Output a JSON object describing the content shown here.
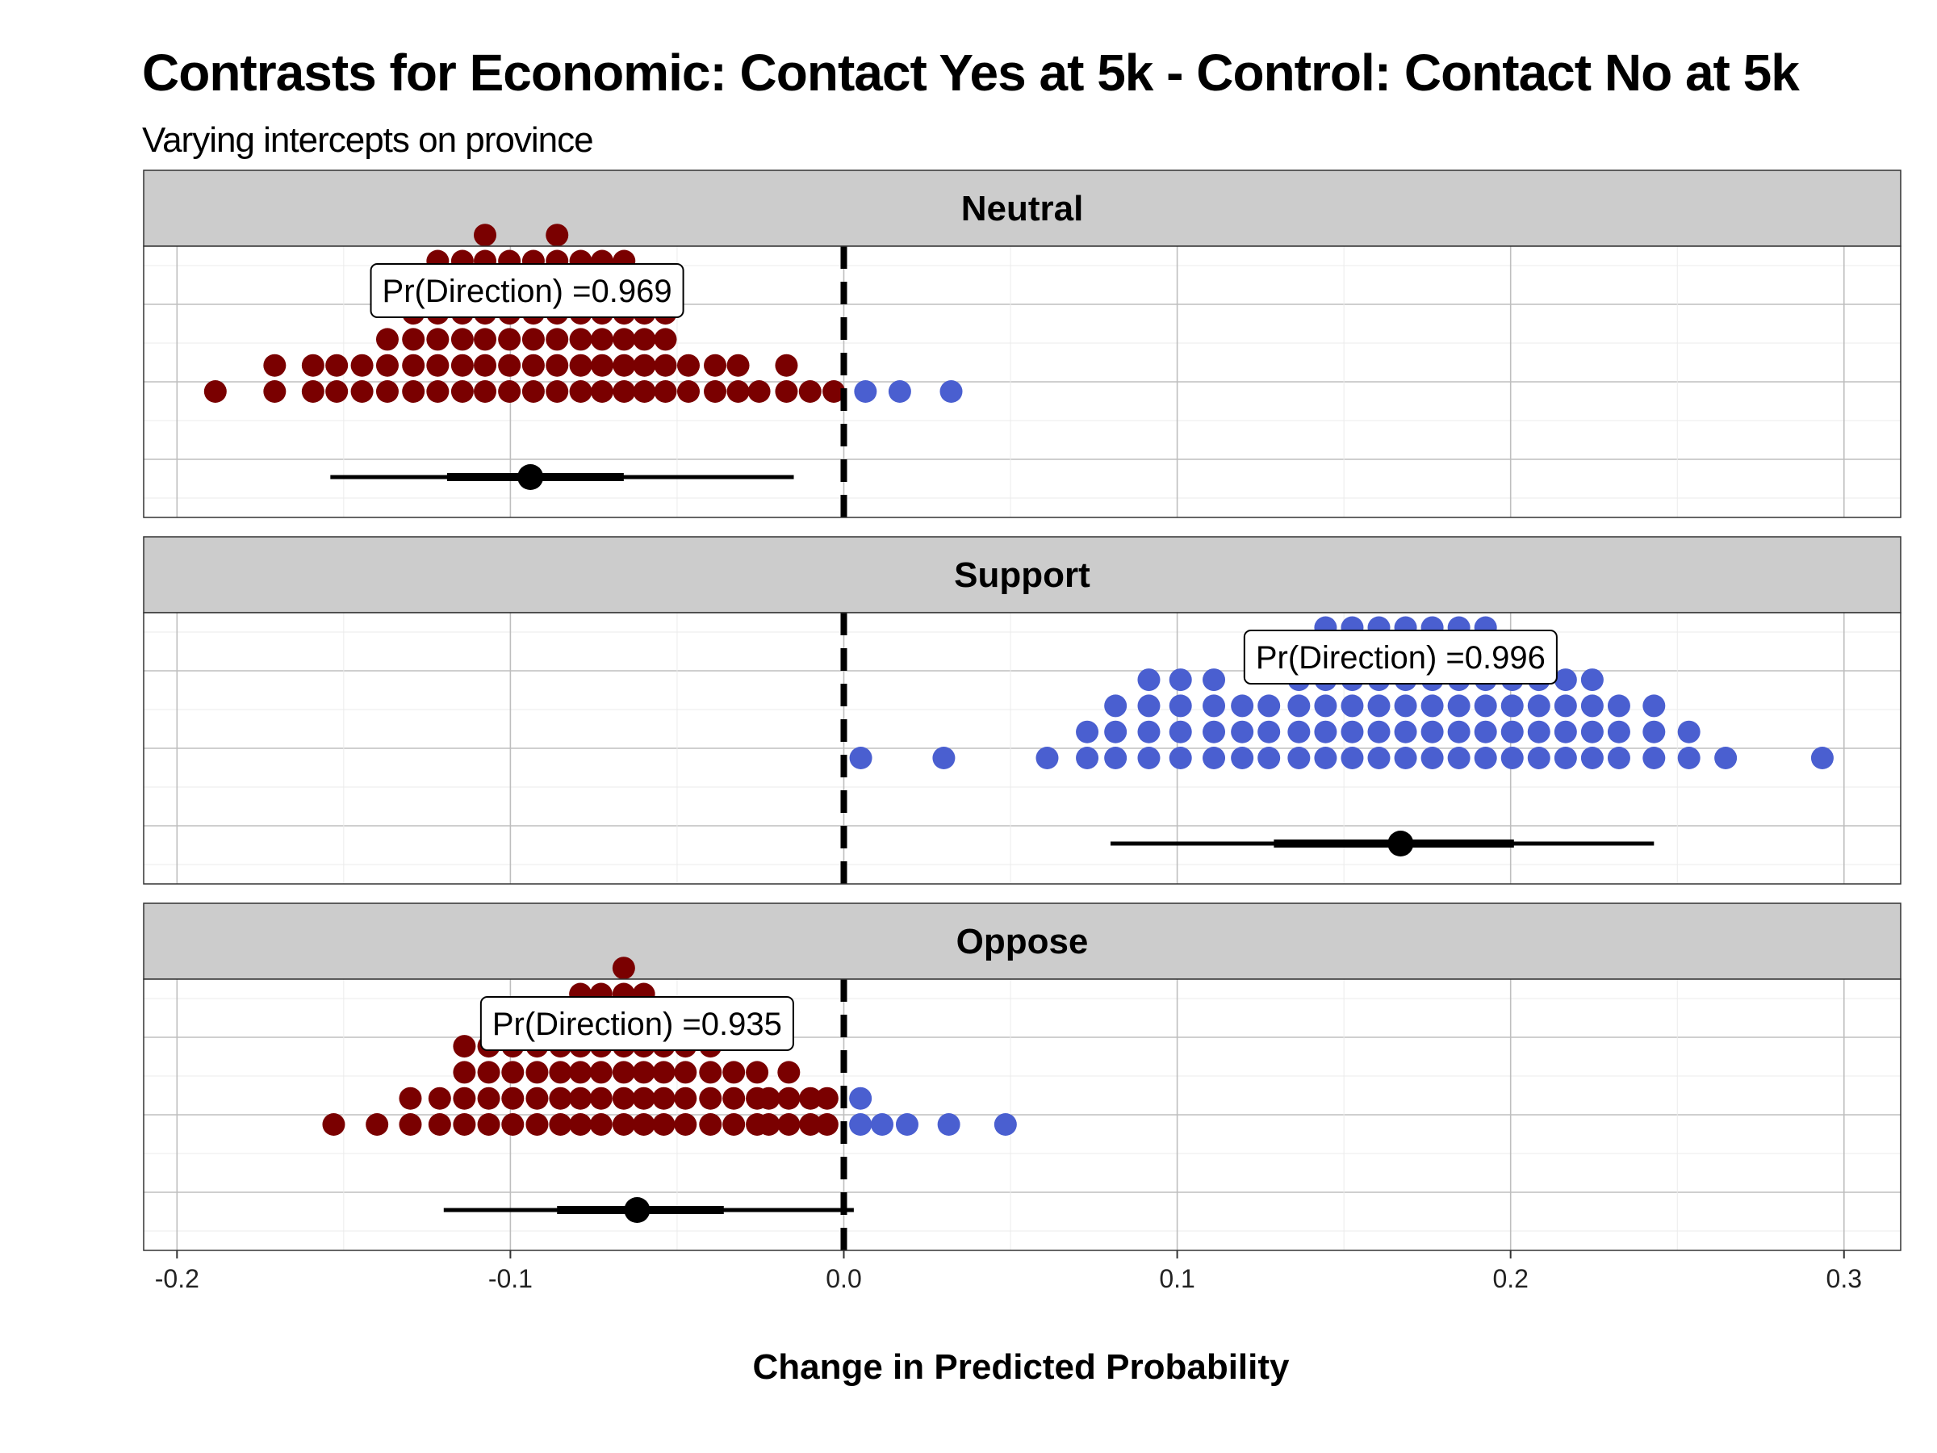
{
  "chart_data": {
    "type": "scatter",
    "subtype": "faceted quantile dotplot",
    "title": "Contrasts for Economic: Contact Yes at 5k - Control: Contact No at 5k",
    "subtitle": "Varying intercepts on province",
    "xlabel": "Change in Predicted Probability",
    "ylabel": "",
    "xlim": [
      -0.21,
      0.317
    ],
    "x_ticks": [
      "-0.2",
      "-0.1",
      "0.0",
      "0.1",
      "0.2",
      "0.3"
    ],
    "x_tick_values": [
      -0.2,
      -0.1,
      0.0,
      0.1,
      0.2,
      0.3
    ],
    "reference_line": {
      "x": 0,
      "style": "dashed",
      "color": "#000000"
    },
    "grid": true,
    "legend": "none",
    "colors": {
      "negative": "#7a0000",
      "positive": "#4a5fd0",
      "interval": "#000000",
      "strip": "#cccccc",
      "grid": "#bebebe"
    },
    "facets": [
      {
        "label": "Neutral",
        "annotation": "Pr(Direction) =0.969",
        "annotation_x": -0.095,
        "point_estimate": -0.094,
        "interval_inner": [
          -0.119,
          -0.066
        ],
        "interval_outer": [
          -0.154,
          -0.015
        ],
        "bins": [
          {
            "x": -0.1885,
            "n": 1
          },
          {
            "x": -0.1707,
            "n": 2
          },
          {
            "x": -0.1592,
            "n": 2
          },
          {
            "x": -0.1521,
            "n": 2
          },
          {
            "x": -0.1445,
            "n": 2
          },
          {
            "x": -0.1369,
            "n": 3
          },
          {
            "x": -0.1291,
            "n": 4
          },
          {
            "x": -0.1218,
            "n": 6
          },
          {
            "x": -0.1144,
            "n": 6
          },
          {
            "x": -0.1076,
            "n": 7
          },
          {
            "x": -0.1003,
            "n": 6
          },
          {
            "x": -0.0931,
            "n": 6
          },
          {
            "x": -0.086,
            "n": 7
          },
          {
            "x": -0.0789,
            "n": 6
          },
          {
            "x": -0.0725,
            "n": 6
          },
          {
            "x": -0.0659,
            "n": 6
          },
          {
            "x": -0.0598,
            "n": 5
          },
          {
            "x": -0.0535,
            "n": 4
          },
          {
            "x": -0.0466,
            "n": 2
          },
          {
            "x": -0.0386,
            "n": 2
          },
          {
            "x": -0.0317,
            "n": 2
          },
          {
            "x": -0.0254,
            "n": 1
          },
          {
            "x": -0.0172,
            "n": 2
          },
          {
            "x": -0.0101,
            "n": 1
          },
          {
            "x": -0.003,
            "n": 1
          },
          {
            "x": 0.0065,
            "n": 1
          },
          {
            "x": 0.0168,
            "n": 1
          },
          {
            "x": 0.0322,
            "n": 1
          }
        ]
      },
      {
        "label": "Support",
        "annotation": "Pr(Direction) =0.996",
        "annotation_x": 0.167,
        "point_estimate": 0.167,
        "interval_inner": [
          0.129,
          0.201
        ],
        "interval_outer": [
          0.08,
          0.243
        ],
        "bins": [
          {
            "x": 0.0051,
            "n": 1
          },
          {
            "x": 0.03,
            "n": 1
          },
          {
            "x": 0.061,
            "n": 1
          },
          {
            "x": 0.073,
            "n": 2
          },
          {
            "x": 0.0815,
            "n": 3
          },
          {
            "x": 0.0915,
            "n": 4
          },
          {
            "x": 0.101,
            "n": 4
          },
          {
            "x": 0.111,
            "n": 4
          },
          {
            "x": 0.1195,
            "n": 3
          },
          {
            "x": 0.1275,
            "n": 3
          },
          {
            "x": 0.1365,
            "n": 5
          },
          {
            "x": 0.1445,
            "n": 6
          },
          {
            "x": 0.1525,
            "n": 6
          },
          {
            "x": 0.1605,
            "n": 6
          },
          {
            "x": 0.1685,
            "n": 6
          },
          {
            "x": 0.1765,
            "n": 6
          },
          {
            "x": 0.1845,
            "n": 6
          },
          {
            "x": 0.1925,
            "n": 6
          },
          {
            "x": 0.2005,
            "n": 5
          },
          {
            "x": 0.2085,
            "n": 4
          },
          {
            "x": 0.2165,
            "n": 4
          },
          {
            "x": 0.2245,
            "n": 4
          },
          {
            "x": 0.2325,
            "n": 3
          },
          {
            "x": 0.243,
            "n": 3
          },
          {
            "x": 0.2535,
            "n": 2
          },
          {
            "x": 0.2645,
            "n": 1
          },
          {
            "x": 0.2935,
            "n": 1
          }
        ]
      },
      {
        "label": "Oppose",
        "annotation": "Pr(Direction) =0.935",
        "annotation_x": -0.062,
        "point_estimate": -0.062,
        "interval_inner": [
          -0.086,
          -0.036
        ],
        "interval_outer": [
          -0.12,
          0.003
        ],
        "bins": [
          {
            "x": -0.153,
            "n": 1
          },
          {
            "x": -0.14,
            "n": 1
          },
          {
            "x": -0.13,
            "n": 2
          },
          {
            "x": -0.1212,
            "n": 2
          },
          {
            "x": -0.1138,
            "n": 4
          },
          {
            "x": -0.1065,
            "n": 4
          },
          {
            "x": -0.0993,
            "n": 5
          },
          {
            "x": -0.092,
            "n": 5
          },
          {
            "x": -0.085,
            "n": 5
          },
          {
            "x": -0.079,
            "n": 6
          },
          {
            "x": -0.0728,
            "n": 6
          },
          {
            "x": -0.066,
            "n": 7
          },
          {
            "x": -0.06,
            "n": 6
          },
          {
            "x": -0.054,
            "n": 5
          },
          {
            "x": -0.0475,
            "n": 4
          },
          {
            "x": -0.04,
            "n": 4
          },
          {
            "x": -0.033,
            "n": 3
          },
          {
            "x": -0.026,
            "n": 3
          },
          {
            "x": -0.0225,
            "n": 2
          },
          {
            "x": -0.0165,
            "n": 3
          },
          {
            "x": -0.01,
            "n": 2
          },
          {
            "x": -0.005,
            "n": 2
          },
          {
            "x": 0.005,
            "n": 2
          },
          {
            "x": 0.0115,
            "n": 1
          },
          {
            "x": 0.019,
            "n": 1
          },
          {
            "x": 0.0315,
            "n": 1
          },
          {
            "x": 0.0485,
            "n": 1
          }
        ]
      }
    ]
  }
}
